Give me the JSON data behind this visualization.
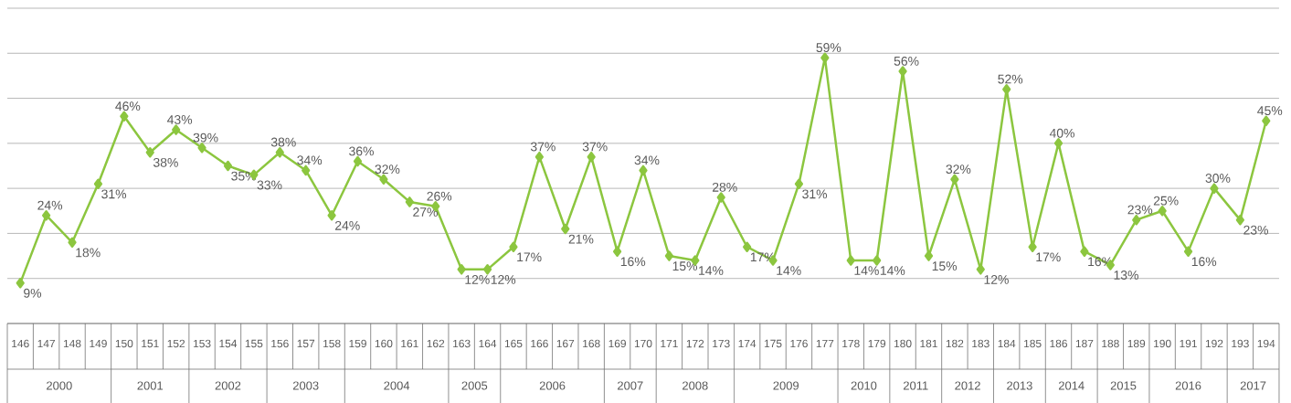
{
  "chart_data": {
    "type": "line",
    "color": "#8cc63f",
    "marker": "diamond",
    "grid": "y",
    "tick_labels": "x",
    "categories": [
      "146",
      "147",
      "148",
      "149",
      "150",
      "151",
      "152",
      "153",
      "154",
      "155",
      "156",
      "157",
      "158",
      "159",
      "160",
      "161",
      "162",
      "163",
      "164",
      "165",
      "166",
      "167",
      "168",
      "169",
      "170",
      "171",
      "172",
      "173",
      "174",
      "175",
      "176",
      "177",
      "178",
      "179",
      "180",
      "181",
      "182",
      "183",
      "184",
      "185",
      "186",
      "187",
      "188",
      "189",
      "190",
      "191",
      "192",
      "193",
      "194"
    ],
    "values": [
      9,
      24,
      18,
      31,
      46,
      38,
      43,
      39,
      35,
      33,
      38,
      34,
      24,
      36,
      32,
      27,
      26,
      12,
      12,
      17,
      37,
      21,
      37,
      16,
      34,
      15,
      14,
      28,
      17,
      14,
      31,
      59,
      14,
      14,
      56,
      15,
      32,
      12,
      52,
      17,
      40,
      16,
      13,
      23,
      25,
      16,
      30,
      23,
      45
    ],
    "value_labels": [
      "9%",
      "24%",
      "18%",
      "31%",
      "46%",
      "38%",
      "43%",
      "39%",
      "35%",
      "33%",
      "38%",
      "34%",
      "24%",
      "36%",
      "32%",
      "27%",
      "26%",
      "12%",
      "12%",
      "17%",
      "37%",
      "21%",
      "37%",
      "16%",
      "34%",
      "15%",
      "14%",
      "28%",
      "17%",
      "14%",
      "31%",
      "59%",
      "14%",
      "14%",
      "56%",
      "15%",
      "32%",
      "12%",
      "52%",
      "17%",
      "40%",
      "16%",
      "13%",
      "23%",
      "25%",
      "16%",
      "30%",
      "23%",
      "45%"
    ],
    "ylim": [
      0,
      70
    ],
    "yticks": [
      {
        "value": 0,
        "label": null
      },
      {
        "value": 10,
        "label": null
      },
      {
        "value": 20,
        "label": null
      },
      {
        "value": 30,
        "label": null
      },
      {
        "value": 40,
        "label": null
      },
      {
        "value": 50,
        "label": null
      },
      {
        "value": 60,
        "label": null
      },
      {
        "value": 70,
        "label": null
      }
    ],
    "annotations": [
      "2000",
      "2001",
      "2002",
      "2003",
      "2004",
      "2005",
      "2006",
      "2007",
      "2008",
      "2009",
      "2010",
      "2011",
      "2012",
      "2013",
      "2014",
      "2015",
      "2016",
      "2017"
    ]
  }
}
